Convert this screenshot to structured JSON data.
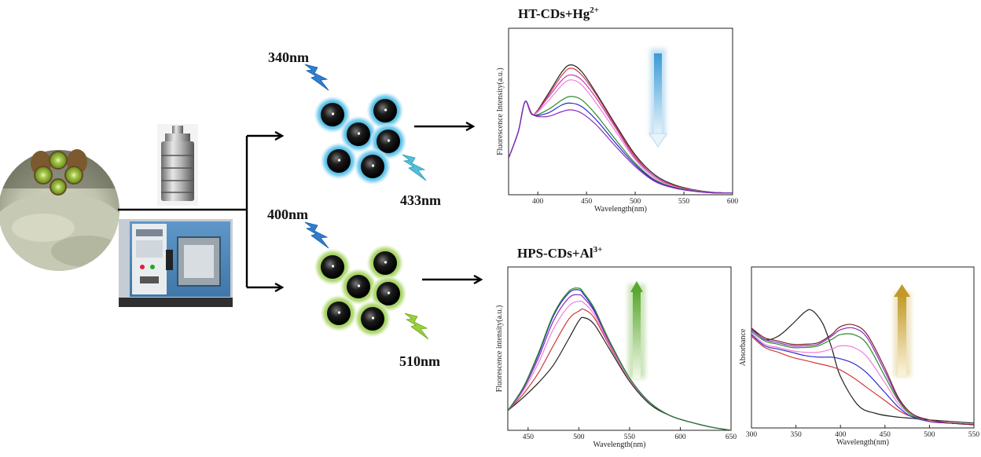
{
  "labels": {
    "excitation_top": "340nm",
    "emission_top": "433nm",
    "excitation_bottom": "400nm",
    "emission_bottom": "510nm"
  },
  "colors": {
    "blue_dot_halo": "#29a9d6",
    "green_dot_halo": "#8cc63f",
    "lightning_blue": "#2f7fd0",
    "lightning_teal": "#52bfd8",
    "lightning_green": "#9bd039",
    "arrow_blue": "#5aa9dd",
    "arrow_green": "#6ab23a",
    "arrow_gold": "#c9a233"
  },
  "icons": [
    "kiwi-powder-image",
    "autoclave-image",
    "drying-oven-image",
    "blue-carbon-dots-cluster",
    "green-carbon-dots-cluster",
    "lightning-icon",
    "decrease-arrow-icon",
    "increase-arrow-icon"
  ],
  "chart_data": [
    {
      "type": "line",
      "title": "HT-CDs+Hg2+",
      "title_main": "HT-CDs+Hg",
      "title_sup": "2+",
      "xlabel": "Wavelength(nm)",
      "ylabel": "Fluorescence Intensity(a.u.)",
      "xlim": [
        370,
        600
      ],
      "ylim": [
        0,
        1
      ],
      "xticks": [
        400,
        450,
        500,
        550,
        600
      ],
      "trend": "decrease",
      "series": [
        {
          "color": "#222222",
          "x": [
            370,
            380,
            387,
            395,
            410,
            425,
            434,
            445,
            460,
            480,
            500,
            520,
            540,
            560,
            580,
            600
          ],
          "y": [
            0.22,
            0.38,
            0.56,
            0.48,
            0.6,
            0.74,
            0.78,
            0.74,
            0.61,
            0.42,
            0.24,
            0.12,
            0.06,
            0.03,
            0.015,
            0.01
          ]
        },
        {
          "color": "#d2383a",
          "x": [
            370,
            380,
            387,
            395,
            410,
            425,
            434,
            445,
            460,
            480,
            500,
            520,
            540,
            560,
            580,
            600
          ],
          "y": [
            0.22,
            0.38,
            0.56,
            0.48,
            0.59,
            0.72,
            0.76,
            0.72,
            0.6,
            0.41,
            0.23,
            0.11,
            0.055,
            0.028,
            0.014,
            0.01
          ]
        },
        {
          "color": "#c03fbe",
          "x": [
            370,
            380,
            387,
            395,
            410,
            425,
            434,
            445,
            460,
            480,
            500,
            520,
            540,
            560,
            580,
            600
          ],
          "y": [
            0.22,
            0.38,
            0.56,
            0.48,
            0.58,
            0.69,
            0.72,
            0.69,
            0.58,
            0.4,
            0.22,
            0.11,
            0.05,
            0.027,
            0.014,
            0.01
          ]
        },
        {
          "color": "#ef7fd8",
          "x": [
            370,
            380,
            387,
            395,
            410,
            425,
            434,
            445,
            460,
            480,
            500,
            520,
            540,
            560,
            580,
            600
          ],
          "y": [
            0.22,
            0.38,
            0.56,
            0.48,
            0.56,
            0.66,
            0.69,
            0.66,
            0.55,
            0.38,
            0.21,
            0.1,
            0.05,
            0.026,
            0.013,
            0.01
          ]
        },
        {
          "color": "#2a8a2a",
          "x": [
            370,
            380,
            387,
            395,
            410,
            425,
            434,
            445,
            460,
            480,
            500,
            520,
            540,
            560,
            580,
            600
          ],
          "y": [
            0.22,
            0.38,
            0.56,
            0.48,
            0.51,
            0.57,
            0.59,
            0.57,
            0.48,
            0.33,
            0.19,
            0.09,
            0.045,
            0.024,
            0.012,
            0.01
          ]
        },
        {
          "color": "#2a2ad0",
          "x": [
            370,
            380,
            387,
            395,
            410,
            425,
            434,
            445,
            460,
            480,
            500,
            520,
            540,
            560,
            580,
            600
          ],
          "y": [
            0.22,
            0.38,
            0.56,
            0.48,
            0.49,
            0.54,
            0.55,
            0.53,
            0.45,
            0.31,
            0.18,
            0.085,
            0.042,
            0.022,
            0.011,
            0.01
          ]
        },
        {
          "color": "#8a2ac0",
          "x": [
            370,
            380,
            387,
            395,
            410,
            425,
            434,
            445,
            460,
            480,
            500,
            520,
            540,
            560,
            580,
            600
          ],
          "y": [
            0.22,
            0.38,
            0.56,
            0.48,
            0.47,
            0.5,
            0.51,
            0.49,
            0.42,
            0.29,
            0.17,
            0.08,
            0.04,
            0.021,
            0.011,
            0.01
          ]
        }
      ]
    },
    {
      "type": "line",
      "title": "HPS-CDs+Al3+",
      "title_main": "HPS-CDs+Al",
      "title_sup": "3+",
      "xlabel": "Wavelength(nm)",
      "ylabel": "Fluorescence intensity(a.u.)",
      "xlim": [
        430,
        650
      ],
      "ylim": [
        0,
        1
      ],
      "xticks": [
        450,
        500,
        550,
        600,
        650
      ],
      "trend": "increase",
      "series": [
        {
          "color": "#222222",
          "x": [
            430,
            445,
            460,
            475,
            490,
            500,
            505,
            515,
            530,
            550,
            570,
            590,
            610,
            630,
            650
          ],
          "y": [
            0.12,
            0.2,
            0.29,
            0.4,
            0.56,
            0.67,
            0.69,
            0.65,
            0.5,
            0.3,
            0.16,
            0.09,
            0.05,
            0.02,
            0.0
          ]
        },
        {
          "color": "#d2383a",
          "x": [
            430,
            445,
            460,
            475,
            490,
            500,
            505,
            515,
            530,
            550,
            570,
            590,
            610,
            630,
            650
          ],
          "y": [
            0.12,
            0.22,
            0.35,
            0.52,
            0.68,
            0.73,
            0.74,
            0.69,
            0.52,
            0.31,
            0.17,
            0.09,
            0.05,
            0.02,
            0.0
          ]
        },
        {
          "color": "#ef7fd8",
          "x": [
            430,
            445,
            460,
            475,
            490,
            500,
            505,
            515,
            530,
            550,
            570,
            590,
            610,
            630,
            650
          ],
          "y": [
            0.12,
            0.24,
            0.41,
            0.62,
            0.76,
            0.79,
            0.78,
            0.71,
            0.53,
            0.31,
            0.17,
            0.09,
            0.05,
            0.02,
            0.0
          ]
        },
        {
          "color": "#8a2ac0",
          "x": [
            430,
            445,
            460,
            475,
            490,
            500,
            505,
            515,
            530,
            550,
            570,
            590,
            610,
            630,
            650
          ],
          "y": [
            0.12,
            0.25,
            0.44,
            0.67,
            0.81,
            0.83,
            0.81,
            0.73,
            0.54,
            0.32,
            0.17,
            0.09,
            0.05,
            0.02,
            0.0
          ]
        },
        {
          "color": "#2a2ad0",
          "x": [
            430,
            445,
            460,
            475,
            490,
            500,
            505,
            515,
            530,
            550,
            570,
            590,
            610,
            630,
            650
          ],
          "y": [
            0.12,
            0.26,
            0.46,
            0.7,
            0.84,
            0.86,
            0.83,
            0.74,
            0.55,
            0.32,
            0.17,
            0.09,
            0.05,
            0.02,
            0.0
          ]
        },
        {
          "color": "#2a8a2a",
          "x": [
            430,
            445,
            460,
            475,
            490,
            500,
            505,
            515,
            530,
            550,
            570,
            590,
            610,
            630,
            650
          ],
          "y": [
            0.12,
            0.26,
            0.47,
            0.71,
            0.85,
            0.87,
            0.84,
            0.75,
            0.55,
            0.32,
            0.17,
            0.09,
            0.05,
            0.02,
            0.0
          ]
        }
      ]
    },
    {
      "type": "line",
      "title": "",
      "xlabel": "Wavelength(nm)",
      "ylabel": "Absorbance",
      "xlim": [
        300,
        550
      ],
      "ylim": [
        0,
        1
      ],
      "xticks": [
        300,
        350,
        400,
        450,
        500,
        550
      ],
      "trend": "increase",
      "series": [
        {
          "color": "#222222",
          "x": [
            300,
            315,
            330,
            345,
            360,
            368,
            380,
            390,
            400,
            420,
            440,
            460,
            480,
            500,
            525,
            550
          ],
          "y": [
            0.62,
            0.55,
            0.57,
            0.64,
            0.72,
            0.73,
            0.65,
            0.5,
            0.32,
            0.14,
            0.09,
            0.07,
            0.06,
            0.05,
            0.04,
            0.03
          ]
        },
        {
          "color": "#d2383a",
          "x": [
            300,
            315,
            330,
            345,
            360,
            375,
            390,
            400,
            415,
            430,
            450,
            465,
            480,
            500,
            525,
            550
          ],
          "y": [
            0.57,
            0.5,
            0.47,
            0.44,
            0.42,
            0.4,
            0.38,
            0.36,
            0.31,
            0.25,
            0.17,
            0.11,
            0.07,
            0.04,
            0.03,
            0.02
          ]
        },
        {
          "color": "#2a2ad0",
          "x": [
            300,
            315,
            330,
            345,
            360,
            375,
            390,
            400,
            415,
            430,
            450,
            465,
            480,
            500,
            525,
            550
          ],
          "y": [
            0.58,
            0.51,
            0.49,
            0.47,
            0.45,
            0.44,
            0.44,
            0.43,
            0.4,
            0.34,
            0.22,
            0.13,
            0.07,
            0.04,
            0.03,
            0.02
          ]
        },
        {
          "color": "#ef7fd8",
          "x": [
            300,
            315,
            330,
            345,
            360,
            375,
            390,
            400,
            415,
            430,
            450,
            465,
            480,
            500,
            525,
            550
          ],
          "y": [
            0.59,
            0.52,
            0.5,
            0.48,
            0.47,
            0.47,
            0.49,
            0.51,
            0.5,
            0.44,
            0.28,
            0.15,
            0.08,
            0.04,
            0.03,
            0.02
          ]
        },
        {
          "color": "#2a8a2a",
          "x": [
            300,
            315,
            330,
            345,
            360,
            375,
            390,
            400,
            415,
            430,
            450,
            465,
            480,
            500,
            525,
            550
          ],
          "y": [
            0.6,
            0.54,
            0.52,
            0.5,
            0.5,
            0.51,
            0.55,
            0.58,
            0.58,
            0.52,
            0.32,
            0.17,
            0.08,
            0.04,
            0.03,
            0.02
          ]
        },
        {
          "color": "#8a2ac0",
          "x": [
            300,
            315,
            330,
            345,
            360,
            375,
            390,
            400,
            415,
            430,
            450,
            465,
            480,
            500,
            525,
            550
          ],
          "y": [
            0.61,
            0.55,
            0.53,
            0.51,
            0.51,
            0.52,
            0.57,
            0.61,
            0.62,
            0.56,
            0.35,
            0.18,
            0.09,
            0.04,
            0.03,
            0.02
          ]
        },
        {
          "color": "#7a1f2a",
          "x": [
            300,
            315,
            330,
            345,
            360,
            375,
            390,
            400,
            415,
            430,
            450,
            465,
            480,
            500,
            525,
            550
          ],
          "y": [
            0.62,
            0.56,
            0.54,
            0.52,
            0.52,
            0.53,
            0.58,
            0.63,
            0.64,
            0.58,
            0.37,
            0.19,
            0.09,
            0.05,
            0.03,
            0.02
          ]
        }
      ]
    }
  ]
}
